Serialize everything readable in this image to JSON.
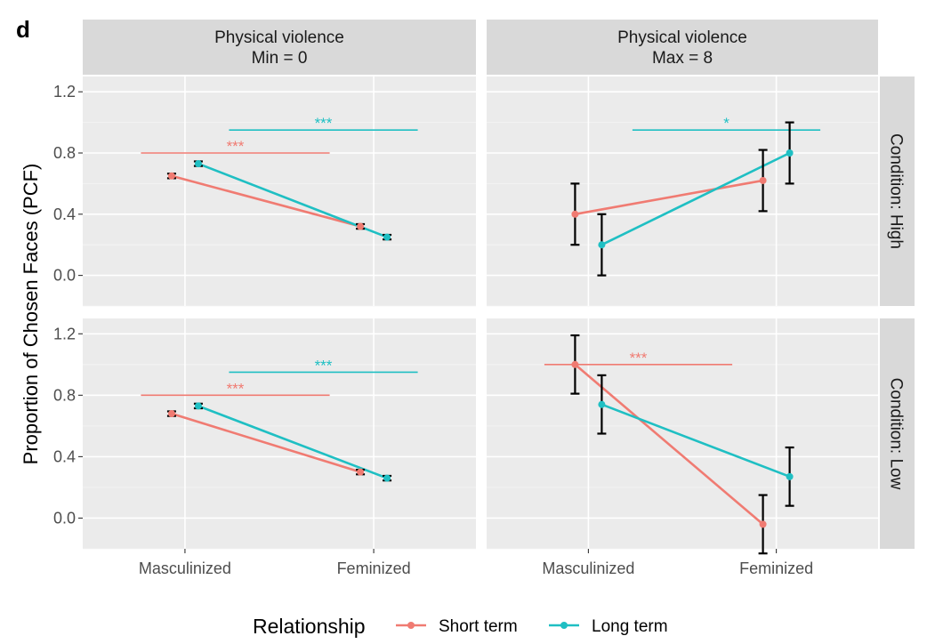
{
  "figure": {
    "tag": "d",
    "ylabel": "Proportion of Chosen Faces (PCF)",
    "legend_title": "Relationship"
  },
  "colors": {
    "short_term": "#f07b72",
    "long_term": "#1fbfc3",
    "error_bar": "#000000"
  },
  "chart_data": {
    "type": "line",
    "categories": [
      "Masculinized",
      "Feminized"
    ],
    "ylim": [
      -0.2,
      1.3
    ],
    "yticks": [
      0.0,
      0.4,
      0.8,
      1.2
    ],
    "ytick_labels": [
      "0.0",
      "0.4",
      "0.8",
      "1.2"
    ],
    "grid": true,
    "legend_position": "bottom",
    "columns": [
      {
        "title_line1": "Physical violence",
        "title_line2": "Min = 0"
      },
      {
        "title_line1": "Physical violence",
        "title_line2": "Max = 8"
      }
    ],
    "rows": [
      {
        "label": "Condition: High"
      },
      {
        "label": "Condition: Low"
      }
    ],
    "series_names": [
      "Short term",
      "Long term"
    ],
    "panels": [
      {
        "col": 0,
        "row": 0,
        "series": [
          {
            "name": "Short term",
            "key": "short_term",
            "values": [
              0.65,
              0.32
            ],
            "err": [
              0.015,
              0.015
            ]
          },
          {
            "name": "Long term",
            "key": "long_term",
            "values": [
              0.73,
              0.25
            ],
            "err": [
              0.015,
              0.015
            ]
          }
        ],
        "annotations": [
          {
            "text": "***",
            "series": "long_term",
            "y": 0.95
          },
          {
            "text": "***",
            "series": "short_term",
            "y": 0.8
          }
        ]
      },
      {
        "col": 1,
        "row": 0,
        "series": [
          {
            "name": "Short term",
            "key": "short_term",
            "values": [
              0.4,
              0.62
            ],
            "err": [
              0.2,
              0.2
            ]
          },
          {
            "name": "Long term",
            "key": "long_term",
            "values": [
              0.2,
              0.8
            ],
            "err": [
              0.2,
              0.2
            ]
          }
        ],
        "annotations": [
          {
            "text": "*",
            "series": "long_term",
            "y": 0.95
          }
        ]
      },
      {
        "col": 0,
        "row": 1,
        "series": [
          {
            "name": "Short term",
            "key": "short_term",
            "values": [
              0.68,
              0.3
            ],
            "err": [
              0.015,
              0.015
            ]
          },
          {
            "name": "Long term",
            "key": "long_term",
            "values": [
              0.73,
              0.26
            ],
            "err": [
              0.015,
              0.015
            ]
          }
        ],
        "annotations": [
          {
            "text": "***",
            "series": "long_term",
            "y": 0.95
          },
          {
            "text": "***",
            "series": "short_term",
            "y": 0.8
          }
        ]
      },
      {
        "col": 1,
        "row": 1,
        "series": [
          {
            "name": "Short term",
            "key": "short_term",
            "values": [
              1.0,
              -0.04
            ],
            "err": [
              0.19,
              0.19
            ]
          },
          {
            "name": "Long term",
            "key": "long_term",
            "values": [
              0.74,
              0.27
            ],
            "err": [
              0.19,
              0.19
            ]
          }
        ],
        "annotations": [
          {
            "text": "***",
            "series": "short_term",
            "y": 1.0
          }
        ]
      }
    ]
  }
}
